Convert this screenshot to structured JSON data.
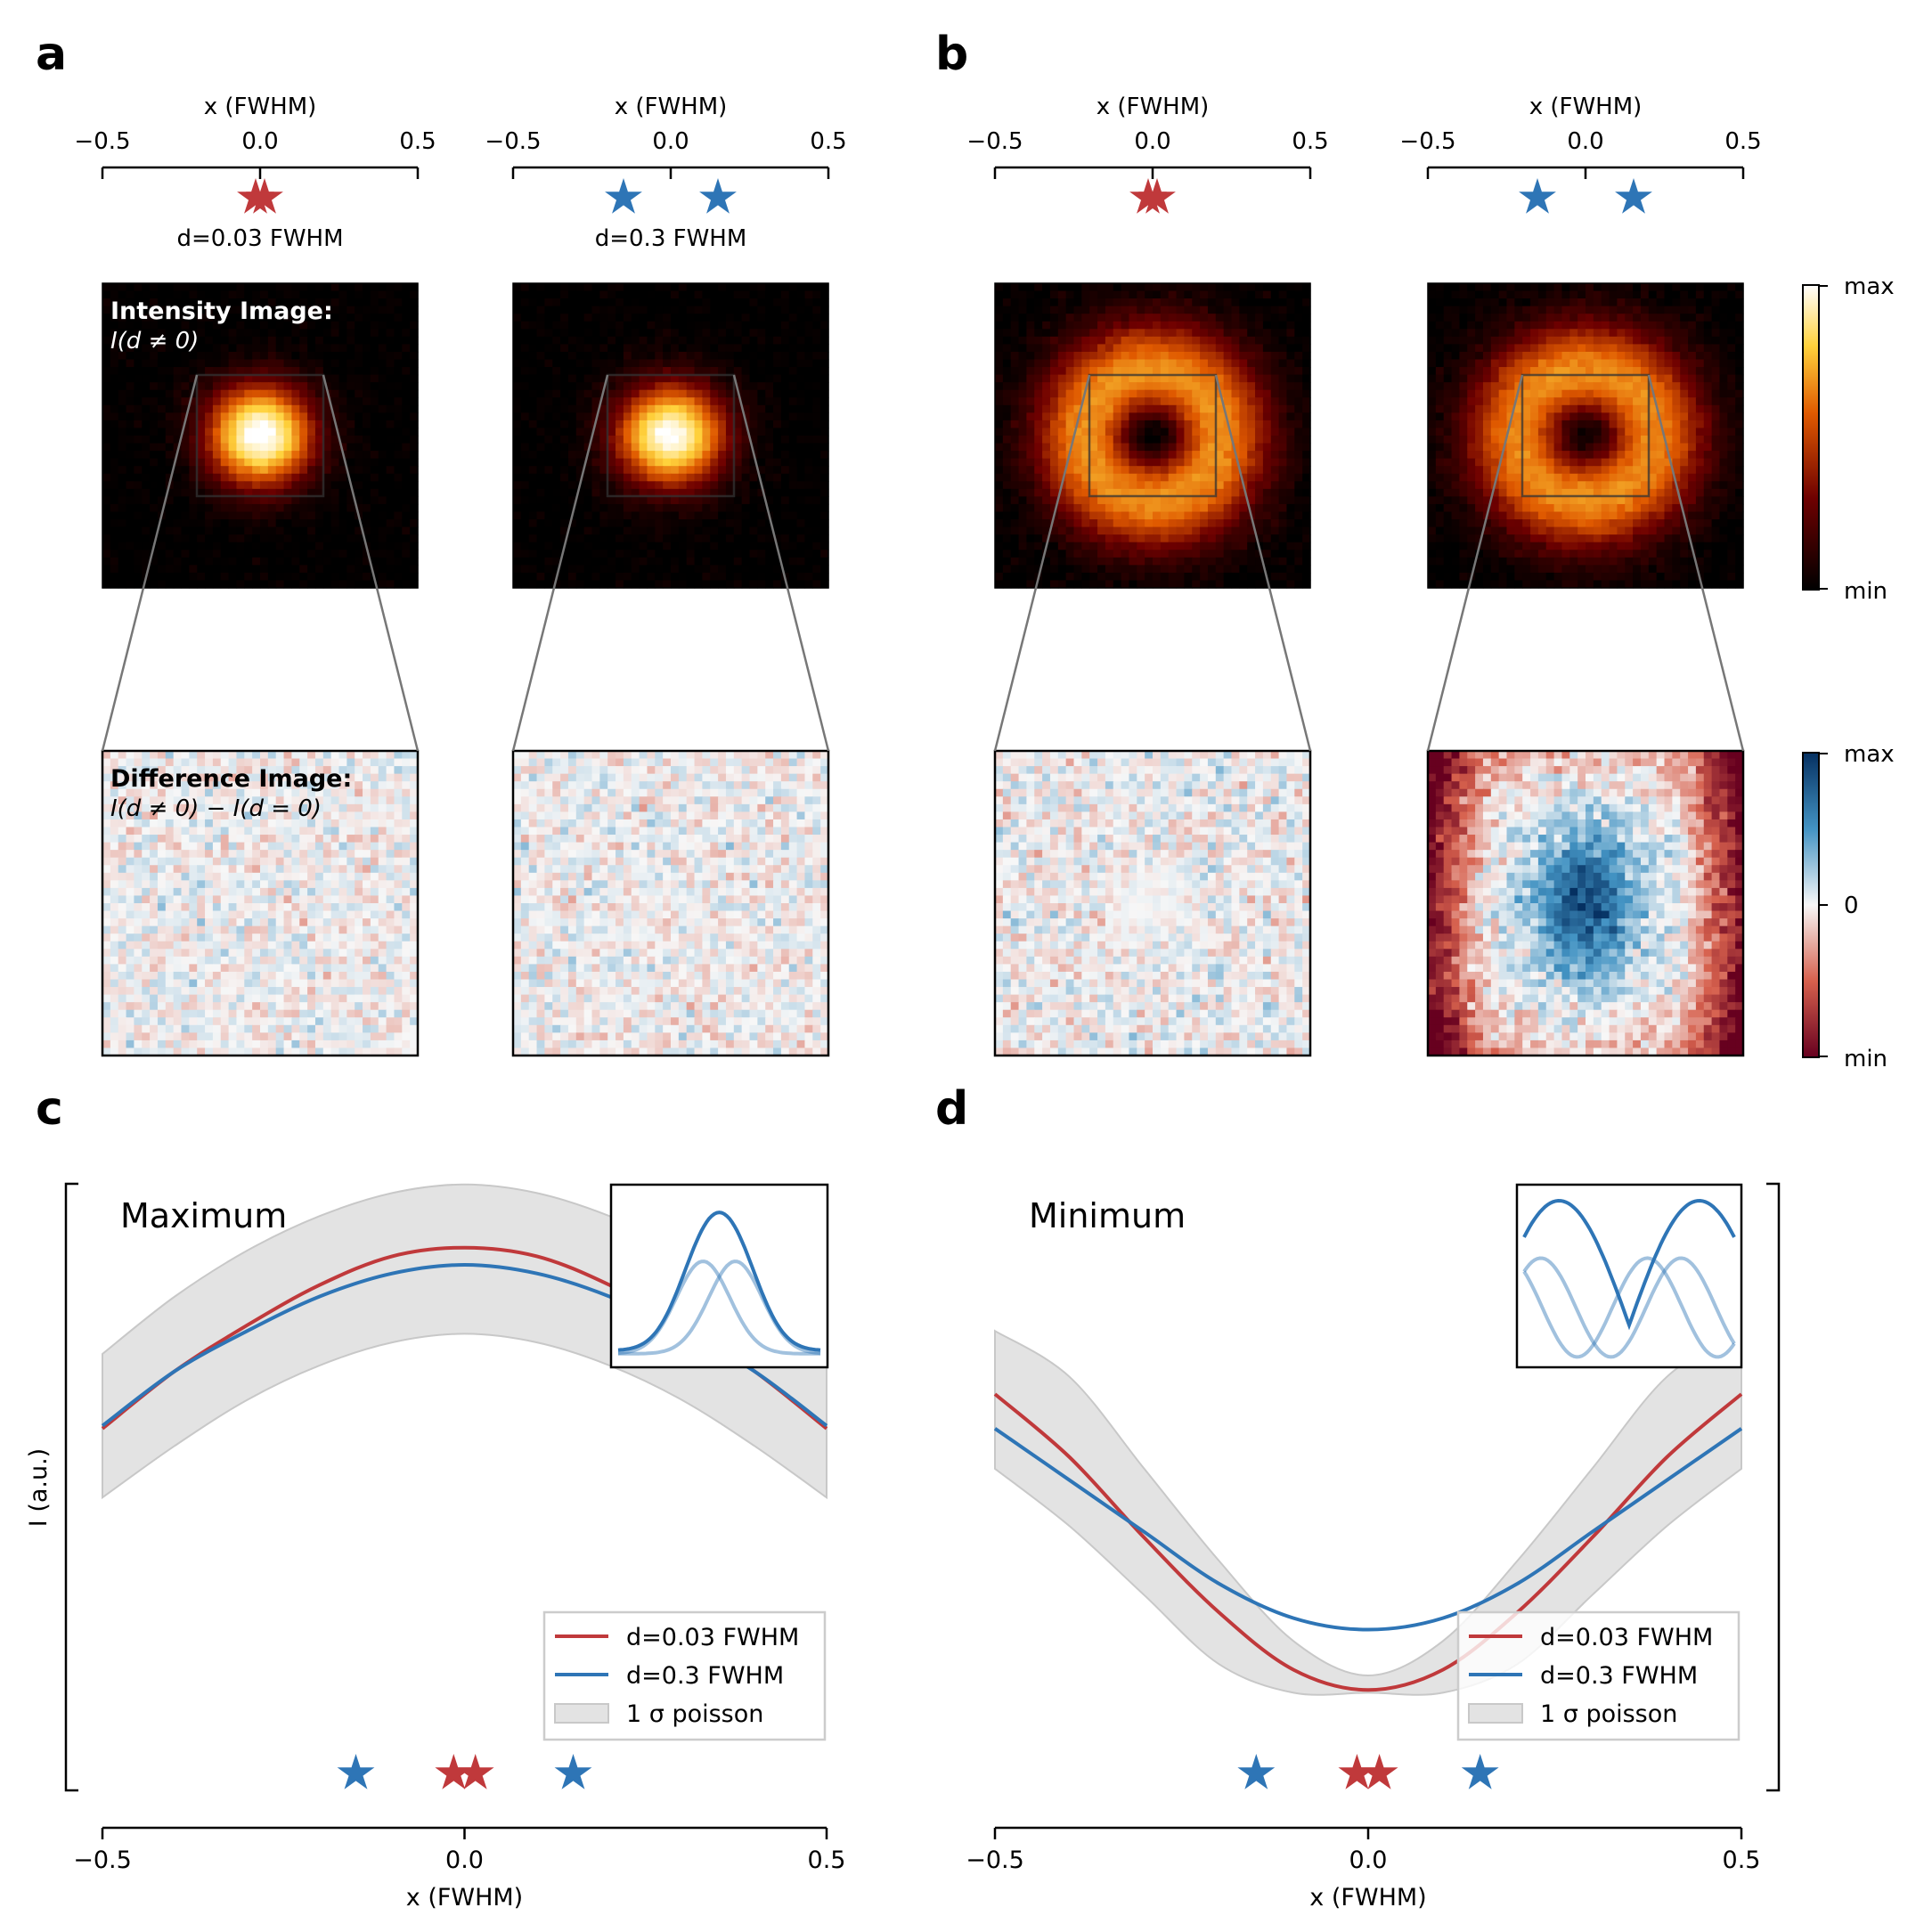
{
  "figure": {
    "panel_labels": {
      "a": "a",
      "b": "b",
      "c": "c",
      "d": "d"
    },
    "top_axis": {
      "xlabel": "x (FWHM)",
      "ticks": [
        "−0.5",
        "0.0",
        "0.5"
      ]
    },
    "separation_labels": {
      "small": "d=0.03 FWHM",
      "large": "d=0.3 FWHM"
    },
    "image_annotations": {
      "intensity_title": "Intensity Image:",
      "intensity_formula": "I(d ≠ 0)",
      "difference_title": "Difference Image:",
      "difference_formula": "I(d ≠ 0) − I(d = 0)"
    },
    "colorbar_intensity": {
      "max": "max",
      "min": "min",
      "colors": [
        "#000000",
        "#6e0000",
        "#e05a00",
        "#ffd23c",
        "#ffffff"
      ]
    },
    "colorbar_difference": {
      "max": "max",
      "zero": "0",
      "min": "min",
      "colors": [
        "#67001f",
        "#d6604d",
        "#f7f7f7",
        "#4393c3",
        "#053061"
      ]
    },
    "colors": {
      "red": "#c0393b",
      "blue": "#2e75b6",
      "band": "#d9d9d9"
    }
  },
  "chart_data": [
    {
      "type": "line",
      "panel": "c",
      "title": "Maximum",
      "xlabel": "x (FWHM)",
      "ylabel": "I (a.u.)",
      "xlim": [
        -0.5,
        0.5
      ],
      "x_ticks": [
        "−0.5",
        "0.0",
        "0.5"
      ],
      "series": [
        {
          "name": "d=0.03 FWHM",
          "color": "#c0393b",
          "x": [
            -0.5,
            -0.4,
            -0.3,
            -0.2,
            -0.1,
            0.0,
            0.1,
            0.2,
            0.3,
            0.4,
            0.5
          ],
          "values": [
            0.63,
            0.73,
            0.81,
            0.88,
            0.93,
            0.945,
            0.93,
            0.88,
            0.81,
            0.73,
            0.63
          ]
        },
        {
          "name": "d=0.3 FWHM",
          "color": "#2e75b6",
          "x": [
            -0.5,
            -0.4,
            -0.3,
            -0.2,
            -0.1,
            0.0,
            0.1,
            0.2,
            0.3,
            0.4,
            0.5
          ],
          "values": [
            0.635,
            0.73,
            0.8,
            0.86,
            0.9,
            0.915,
            0.9,
            0.86,
            0.8,
            0.73,
            0.635
          ]
        }
      ],
      "band": {
        "name": "1 σ poisson",
        "x": [
          -0.5,
          -0.4,
          -0.3,
          -0.2,
          -0.1,
          0.0,
          0.1,
          0.2,
          0.3,
          0.4,
          0.5
        ],
        "lower": [
          0.51,
          0.6,
          0.68,
          0.74,
          0.78,
          0.795,
          0.78,
          0.74,
          0.68,
          0.6,
          0.51
        ],
        "upper": [
          0.76,
          0.86,
          0.94,
          1.0,
          1.04,
          1.055,
          1.04,
          1.0,
          0.94,
          0.86,
          0.76
        ]
      },
      "emitters": [
        {
          "x": -0.15,
          "color": "#2e75b6"
        },
        {
          "x": 0.15,
          "color": "#2e75b6"
        },
        {
          "x": -0.015,
          "color": "#c0393b"
        },
        {
          "x": 0.015,
          "color": "#c0393b"
        }
      ],
      "inset": {
        "curves": [
          "sum",
          "left",
          "right"
        ]
      },
      "legend_position": "lower-right"
    },
    {
      "type": "line",
      "panel": "d",
      "title": "Minimum",
      "xlabel": "x (FWHM)",
      "ylabel": "I (a.u.)",
      "xlim": [
        -0.5,
        0.5
      ],
      "x_ticks": [
        "−0.5",
        "0.0",
        "0.5"
      ],
      "series": [
        {
          "name": "d=0.03 FWHM",
          "color": "#c0393b",
          "x": [
            -0.5,
            -0.4,
            -0.3,
            -0.2,
            -0.1,
            0.0,
            0.1,
            0.2,
            0.3,
            0.4,
            0.5
          ],
          "values": [
            0.69,
            0.58,
            0.44,
            0.31,
            0.21,
            0.175,
            0.21,
            0.31,
            0.44,
            0.58,
            0.69
          ]
        },
        {
          "name": "d=0.3 FWHM",
          "color": "#2e75b6",
          "x": [
            -0.5,
            -0.4,
            -0.3,
            -0.2,
            -0.1,
            0.0,
            0.1,
            0.2,
            0.3,
            0.4,
            0.5
          ],
          "values": [
            0.63,
            0.54,
            0.45,
            0.36,
            0.3,
            0.28,
            0.3,
            0.36,
            0.45,
            0.54,
            0.63
          ]
        }
      ],
      "band": {
        "name": "1 σ poisson",
        "x": [
          -0.5,
          -0.4,
          -0.3,
          -0.2,
          -0.1,
          0.0,
          0.1,
          0.2,
          0.3,
          0.4,
          0.5
        ],
        "lower": [
          0.56,
          0.46,
          0.34,
          0.22,
          0.17,
          0.17,
          0.17,
          0.22,
          0.34,
          0.46,
          0.56
        ],
        "upper": [
          0.8,
          0.72,
          0.56,
          0.4,
          0.26,
          0.2,
          0.26,
          0.4,
          0.56,
          0.72,
          0.8
        ]
      },
      "emitters": [
        {
          "x": -0.15,
          "color": "#2e75b6"
        },
        {
          "x": 0.15,
          "color": "#2e75b6"
        },
        {
          "x": -0.015,
          "color": "#c0393b"
        },
        {
          "x": 0.015,
          "color": "#c0393b"
        }
      ],
      "inset": {
        "curves": [
          "sum",
          "left",
          "right"
        ]
      },
      "legend_position": "lower-right"
    }
  ]
}
